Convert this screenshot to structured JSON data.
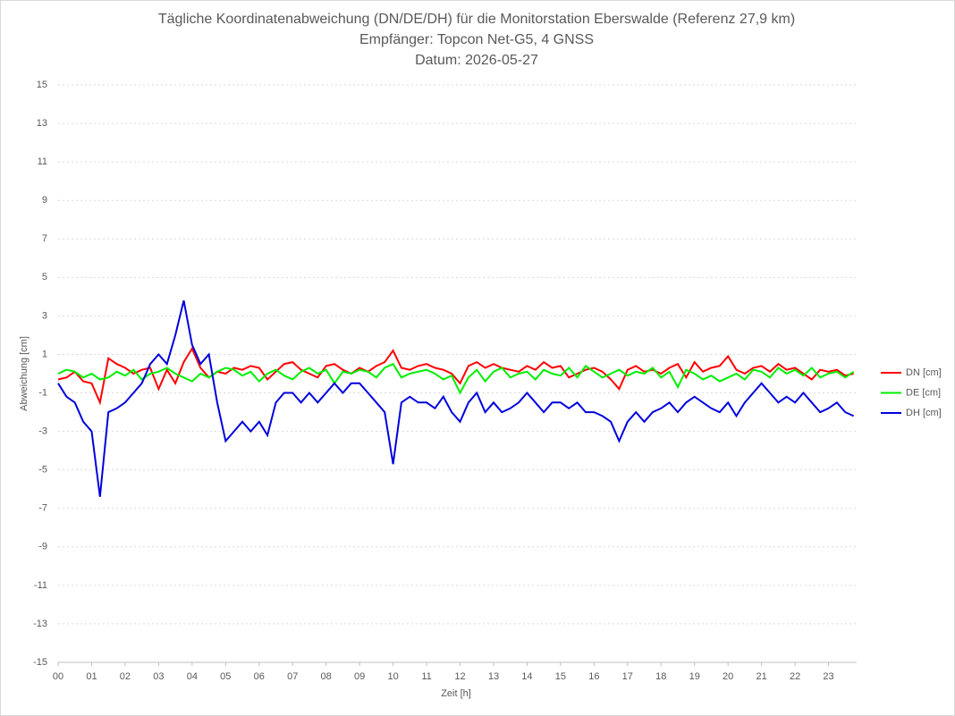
{
  "chart_data": {
    "type": "line",
    "title": [
      "Tägliche Koordinatenabweichung (DN/DE/DH) für die Monitorstation Eberswalde (Referenz 27,9 km)",
      "Empfänger: Topcon Net-G5, 4 GNSS",
      "Datum: 2026-05-27"
    ],
    "xlabel": "Zeit [h]",
    "ylabel": "Abweichung [cm]",
    "x": [
      0,
      0.25,
      0.5,
      0.75,
      1,
      1.25,
      1.5,
      1.75,
      2,
      2.25,
      2.5,
      2.75,
      3,
      3.25,
      3.5,
      3.75,
      4,
      4.25,
      4.5,
      4.75,
      5,
      5.25,
      5.5,
      5.75,
      6,
      6.25,
      6.5,
      6.75,
      7,
      7.25,
      7.5,
      7.75,
      8,
      8.25,
      8.5,
      8.75,
      9,
      9.25,
      9.5,
      9.75,
      10,
      10.25,
      10.5,
      10.75,
      11,
      11.25,
      11.5,
      11.75,
      12,
      12.25,
      12.5,
      12.75,
      13,
      13.25,
      13.5,
      13.75,
      14,
      14.25,
      14.5,
      14.75,
      15,
      15.25,
      15.5,
      15.75,
      16,
      16.25,
      16.5,
      16.75,
      17,
      17.25,
      17.5,
      17.75,
      18,
      18.25,
      18.5,
      18.75,
      19,
      19.25,
      19.5,
      19.75,
      20,
      20.25,
      20.5,
      20.75,
      21,
      21.25,
      21.5,
      21.75,
      22,
      22.25,
      22.5,
      22.75,
      23,
      23.25,
      23.5,
      23.75
    ],
    "series": [
      {
        "name": "DN [cm]",
        "color": "#ff0000",
        "values": [
          -0.3,
          -0.2,
          0.1,
          -0.4,
          -0.5,
          -1.5,
          0.8,
          0.5,
          0.3,
          0.0,
          0.2,
          0.3,
          -0.8,
          0.2,
          -0.5,
          0.6,
          1.3,
          0.3,
          -0.2,
          0.1,
          0.0,
          0.3,
          0.2,
          0.4,
          0.3,
          -0.3,
          0.1,
          0.5,
          0.6,
          0.2,
          0.0,
          -0.2,
          0.4,
          0.5,
          0.2,
          0.0,
          0.3,
          0.1,
          0.4,
          0.6,
          1.2,
          0.3,
          0.2,
          0.4,
          0.5,
          0.3,
          0.2,
          0.0,
          -0.5,
          0.4,
          0.6,
          0.3,
          0.5,
          0.3,
          0.2,
          0.1,
          0.4,
          0.2,
          0.6,
          0.3,
          0.4,
          -0.2,
          0.0,
          0.2,
          0.3,
          0.1,
          -0.3,
          -0.8,
          0.2,
          0.4,
          0.1,
          0.2,
          0.0,
          0.3,
          0.5,
          -0.2,
          0.6,
          0.1,
          0.3,
          0.4,
          0.9,
          0.2,
          0.0,
          0.3,
          0.4,
          0.1,
          0.5,
          0.2,
          0.3,
          0.0,
          -0.3,
          0.2,
          0.1,
          0.2,
          -0.1,
          0.0
        ]
      },
      {
        "name": "DE [cm]",
        "color": "#00ee00",
        "values": [
          0.0,
          0.2,
          0.1,
          -0.2,
          0.0,
          -0.3,
          -0.2,
          0.1,
          -0.1,
          0.2,
          -0.3,
          0.0,
          0.1,
          0.3,
          0.0,
          -0.2,
          -0.4,
          0.0,
          -0.2,
          0.1,
          0.3,
          0.2,
          -0.1,
          0.1,
          -0.4,
          0.0,
          0.2,
          -0.1,
          -0.3,
          0.1,
          0.3,
          0.0,
          0.2,
          -0.5,
          0.1,
          0.0,
          0.2,
          0.1,
          -0.2,
          0.3,
          0.5,
          -0.2,
          0.0,
          0.1,
          0.2,
          0.0,
          -0.3,
          -0.1,
          -1.0,
          -0.2,
          0.2,
          -0.4,
          0.1,
          0.3,
          -0.2,
          0.0,
          0.1,
          -0.3,
          0.2,
          0.0,
          -0.1,
          0.3,
          -0.2,
          0.4,
          0.1,
          -0.2,
          0.0,
          0.2,
          -0.1,
          0.1,
          0.0,
          0.3,
          -0.2,
          0.1,
          -0.7,
          0.2,
          0.0,
          -0.3,
          -0.1,
          -0.4,
          -0.2,
          0.0,
          -0.3,
          0.2,
          0.1,
          -0.2,
          0.3,
          0.0,
          0.2,
          -0.1,
          0.3,
          -0.2,
          0.0,
          0.1,
          -0.2,
          0.1
        ]
      },
      {
        "name": "DH [cm]",
        "color": "#0000dd",
        "values": [
          -0.5,
          -1.2,
          -1.5,
          -2.5,
          -3.0,
          -6.4,
          -2.0,
          -1.8,
          -1.5,
          -1.0,
          -0.5,
          0.5,
          1.0,
          0.5,
          2.0,
          3.8,
          1.5,
          0.5,
          1.0,
          -1.5,
          -3.5,
          -3.0,
          -2.5,
          -3.0,
          -2.5,
          -3.2,
          -1.5,
          -1.0,
          -1.0,
          -1.5,
          -1.0,
          -1.5,
          -1.0,
          -0.5,
          -1.0,
          -0.5,
          -0.5,
          -1.0,
          -1.5,
          -2.0,
          -4.7,
          -1.5,
          -1.2,
          -1.5,
          -1.5,
          -1.8,
          -1.2,
          -2.0,
          -2.5,
          -1.5,
          -1.0,
          -2.0,
          -1.5,
          -2.0,
          -1.8,
          -1.5,
          -1.0,
          -1.5,
          -2.0,
          -1.5,
          -1.5,
          -1.8,
          -1.5,
          -2.0,
          -2.0,
          -2.2,
          -2.5,
          -3.5,
          -2.5,
          -2.0,
          -2.5,
          -2.0,
          -1.8,
          -1.5,
          -2.0,
          -1.5,
          -1.2,
          -1.5,
          -1.8,
          -2.0,
          -1.5,
          -2.2,
          -1.5,
          -1.0,
          -0.5,
          -1.0,
          -1.5,
          -1.2,
          -1.5,
          -1.0,
          -1.5,
          -2.0,
          -1.8,
          -1.5,
          -2.0,
          -2.2
        ]
      }
    ],
    "xlim": [
      0,
      24
    ],
    "xticks": [
      {
        "value": 0,
        "label": "00"
      },
      {
        "value": 1,
        "label": "01"
      },
      {
        "value": 2,
        "label": "02"
      },
      {
        "value": 3,
        "label": "03"
      },
      {
        "value": 4,
        "label": "04"
      },
      {
        "value": 5,
        "label": "05"
      },
      {
        "value": 6,
        "label": "06"
      },
      {
        "value": 7,
        "label": "07"
      },
      {
        "value": 8,
        "label": "08"
      },
      {
        "value": 9,
        "label": "09"
      },
      10,
      11,
      12,
      13,
      14,
      15,
      16,
      17,
      18,
      19,
      20,
      21,
      22,
      23
    ],
    "ylim": [
      -15,
      15
    ],
    "yticks": [
      -15,
      -13,
      -11,
      -9,
      -7,
      -5,
      -3,
      -1,
      1,
      3,
      5,
      7,
      9,
      11,
      13,
      15
    ],
    "grid": true,
    "legend": "right"
  }
}
